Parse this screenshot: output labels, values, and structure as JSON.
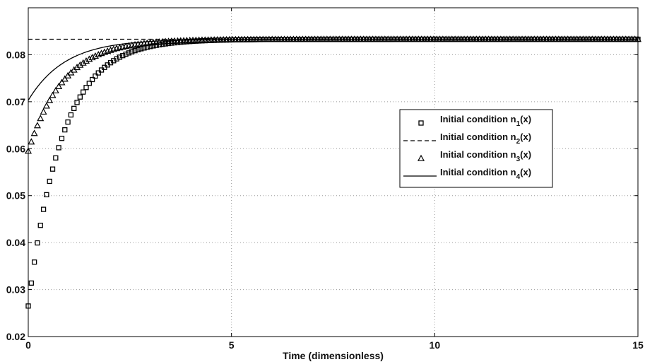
{
  "chart_data": {
    "type": "line",
    "title": "",
    "xlabel": "Time (dimensionless)",
    "ylabel": "",
    "xlim": [
      0,
      15
    ],
    "ylim": [
      0.02,
      0.09
    ],
    "x_ticks": [
      0,
      5,
      10,
      15
    ],
    "x_tick_labels": [
      "0",
      "5",
      "10",
      "15"
    ],
    "y_ticks": [
      0.02,
      0.03,
      0.04,
      0.05,
      0.06,
      0.07,
      0.08
    ],
    "y_tick_labels": [
      "0.02",
      "0.03",
      "0.04",
      "0.05",
      "0.06",
      "0.07",
      "0.08"
    ],
    "grid": true,
    "legend_position": "right",
    "equilibrium": 0.0833,
    "series": [
      {
        "name": "Initial condition n1(x)",
        "legend_base": "Initial condition n",
        "legend_sub": "1",
        "legend_tail": "(x)",
        "style": "square-markers",
        "color": "#000000",
        "initial_value": 0.0265,
        "rate": 1.2
      },
      {
        "name": "Initial condition n2(x)",
        "legend_base": "Initial condition n",
        "legend_sub": "2",
        "legend_tail": "(x)",
        "style": "dashed",
        "color": "#000000",
        "initial_value": 0.0833,
        "rate": 0
      },
      {
        "name": "Initial condition n3(x)",
        "legend_base": "Initial condition n",
        "legend_sub": "3",
        "legend_tail": "(x)",
        "style": "triangle-markers",
        "color": "#000000",
        "initial_value": 0.0595,
        "rate": 1.15
      },
      {
        "name": "Initial condition n4(x)",
        "legend_base": "Initial condition n",
        "legend_sub": "4",
        "legend_tail": "(x)",
        "style": "solid",
        "color": "#000000",
        "initial_value": 0.0703,
        "rate": 1.1
      }
    ]
  }
}
